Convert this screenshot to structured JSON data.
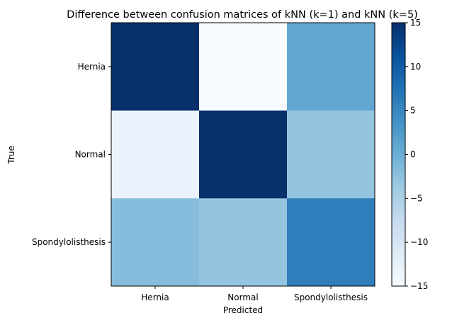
{
  "chart_data": {
    "type": "heatmap",
    "title": "Difference between confusion matrices of kNN (k=1) and kNN (k=5)",
    "xlabel": "Predicted",
    "ylabel": "True",
    "x_categories": [
      "Hernia",
      "Normal",
      "Spondylolisthesis"
    ],
    "y_categories": [
      "Hernia",
      "Normal",
      "Spondylolisthesis"
    ],
    "values": [
      [
        15,
        -15,
        1
      ],
      [
        -13,
        15,
        -3
      ],
      [
        -2,
        -3,
        6
      ]
    ],
    "colormap": "Blues",
    "color_range": [
      -15,
      15
    ],
    "colorbar_ticks": [
      -15,
      -10,
      -5,
      0,
      5,
      10,
      15
    ],
    "colorbar_tick_labels": [
      "−15",
      "−10",
      "−5",
      "0",
      "5",
      "10",
      "15"
    ],
    "grid": false
  }
}
